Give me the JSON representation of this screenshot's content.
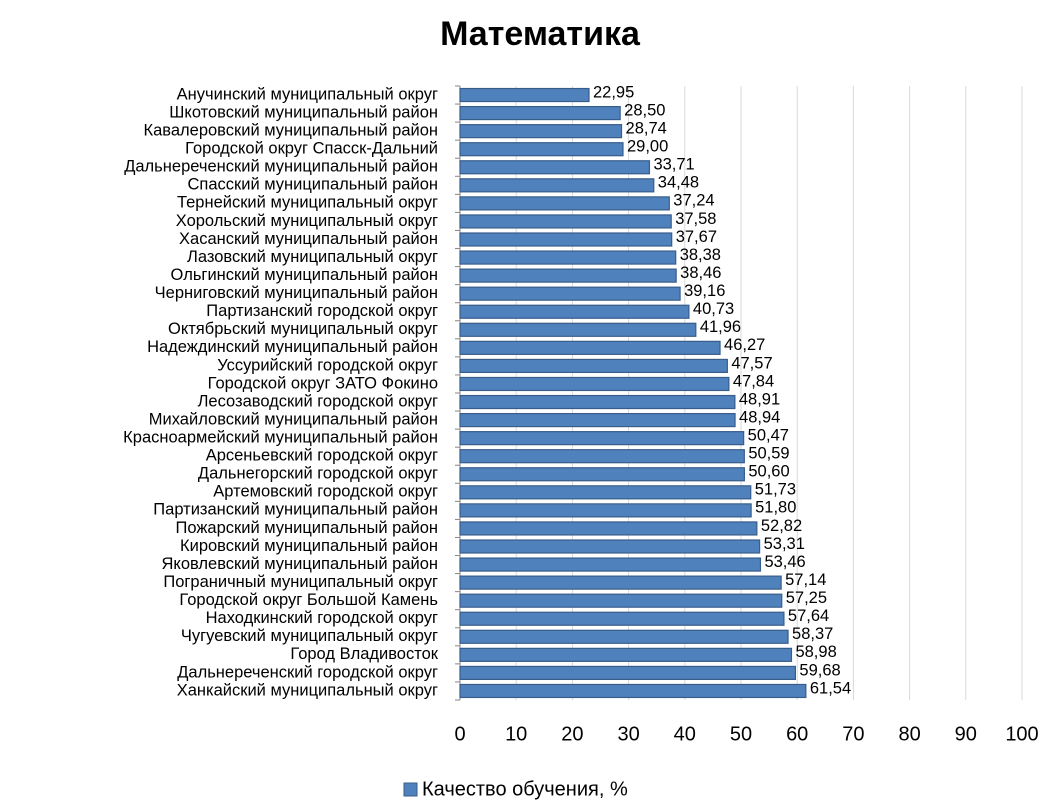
{
  "chart_data": {
    "type": "bar",
    "orientation": "horizontal",
    "title": "Математика",
    "categories": [
      "Анучинский муниципальный округ",
      "Шкотовский муниципальный район",
      "Кавалеровский муниципальный район",
      "Городской округ Спасск-Дальний",
      "Дальнереченский муниципальный район",
      "Спасский муниципальный район",
      "Тернейский муниципальный округ",
      "Хорольский муниципальный округ",
      "Хасанский муниципальный район",
      "Лазовский муниципальный округ",
      "Ольгинский муниципальный район",
      "Черниговский муниципальный район",
      "Партизанский городской округ",
      "Октябрьский муниципальный округ",
      "Надеждинский муниципальный район",
      "Уссурийский городской округ",
      "Городской округ ЗАТО Фокино",
      "Лесозаводский городской округ",
      "Михайловский муниципальный район",
      "Красноармейский муниципальный район",
      "Арсеньевский городской округ",
      "Дальнегорский городской округ",
      "Артемовский городской округ",
      "Партизанский муниципальный район",
      "Пожарский муниципальный район",
      "Кировский муниципальный район",
      "Яковлевский муниципальный район",
      "Пограничный муниципальный округ",
      "Городской округ Большой Камень",
      "Находкинский городской округ",
      "Чугуевский муниципальный округ",
      "Город Владивосток",
      "Дальнереченский городской округ",
      "Ханкайский муниципальный округ"
    ],
    "series": [
      {
        "name": "Качество обучения, %",
        "color": "#4f81bd",
        "values": [
          22.95,
          28.5,
          28.74,
          29.0,
          33.71,
          34.48,
          37.24,
          37.58,
          37.67,
          38.38,
          38.46,
          39.16,
          40.73,
          41.96,
          46.27,
          47.57,
          47.84,
          48.91,
          48.94,
          50.47,
          50.59,
          50.6,
          51.73,
          51.8,
          52.82,
          53.31,
          53.46,
          57.14,
          57.25,
          57.64,
          58.37,
          58.98,
          59.68,
          61.54
        ],
        "value_labels": [
          "22,95",
          "28,50",
          "28,74",
          "29,00",
          "33,71",
          "34,48",
          "37,24",
          "37,58",
          "37,67",
          "38,38",
          "38,46",
          "39,16",
          "40,73",
          "41,96",
          "46,27",
          "47,57",
          "47,84",
          "48,91",
          "48,94",
          "50,47",
          "50,59",
          "50,60",
          "51,73",
          "51,80",
          "52,82",
          "53,31",
          "53,46",
          "57,14",
          "57,25",
          "57,64",
          "58,37",
          "58,98",
          "59,68",
          "61,54"
        ]
      }
    ],
    "xlim": [
      0,
      100
    ],
    "xticks": [
      0,
      10,
      20,
      30,
      40,
      50,
      60,
      70,
      80,
      90,
      100
    ],
    "grid": true,
    "legend": "bottom"
  }
}
